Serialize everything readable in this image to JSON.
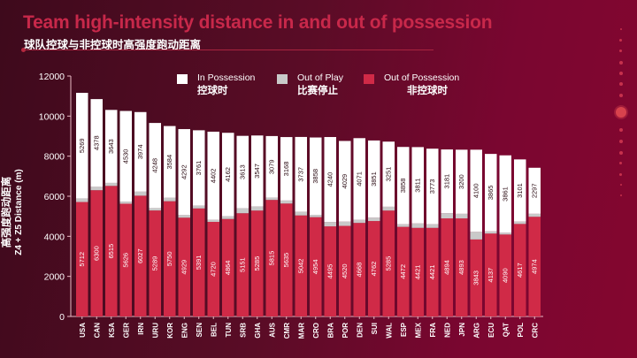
{
  "header": {
    "title": "Team high-intensity distance in and out of possession",
    "subtitle": "球队控球与非控球时高强度跑动距离"
  },
  "legend": [
    {
      "en": "In Possession",
      "zh": "控球时",
      "color": "#ffffff"
    },
    {
      "en": "Out of Play",
      "zh": "比赛停止",
      "color": "#c9c9c9"
    },
    {
      "en": "Out of Possession",
      "zh": "非控球时",
      "color": "#d02a47"
    }
  ],
  "axis": {
    "ylabel_zh": "高强度跑动距离",
    "ylabel_en": "Z4 + Z5 Distance (m)"
  },
  "chart_data": {
    "type": "bar",
    "stacked": true,
    "title": "Team high-intensity distance in and out of possession",
    "subtitle": "球队控球与非控球时高强度跑动距离",
    "xlabel": "",
    "ylabel": "高强度跑动距离 Z4 + Z5 Distance (m)",
    "ylim": [
      0,
      12000
    ],
    "yticks": [
      0,
      2000,
      4000,
      6000,
      8000,
      10000,
      12000
    ],
    "grid": false,
    "legend_position": "top-center",
    "categories": [
      "USA",
      "CAN",
      "KSA",
      "GER",
      "IRN",
      "URU",
      "KOR",
      "ENG",
      "SEN",
      "BEL",
      "TUN",
      "SRB",
      "GHA",
      "AUS",
      "CMR",
      "MAR",
      "CRO",
      "BRA",
      "POR",
      "DEN",
      "SUI",
      "WAL",
      "ESP",
      "MEX",
      "FRA",
      "NED",
      "JPN",
      "ARG",
      "ECU",
      "QAT",
      "POL",
      "CRC"
    ],
    "series": [
      {
        "name": "Out of Possession",
        "name_zh": "非控球时",
        "color": "#d02a47",
        "values": [
          5712,
          6300,
          6515,
          5626,
          6027,
          5289,
          5750,
          4929,
          5391,
          4720,
          4864,
          5151,
          5285,
          5815,
          5635,
          5042,
          4954,
          4495,
          4520,
          4668,
          4762,
          5285,
          4472,
          4421,
          4421,
          4894,
          4893,
          3843,
          4137,
          4090,
          4617,
          4974
        ]
      },
      {
        "name": "Out of Play",
        "name_zh": "比赛停止",
        "color": "#c9c9c9",
        "values": [
          180,
          170,
          150,
          100,
          200,
          120,
          170,
          130,
          140,
          100,
          140,
          250,
          200,
          110,
          150,
          180,
          120,
          220,
          210,
          160,
          170,
          190,
          130,
          220,
          180,
          260,
          230,
          380,
          110,
          90,
          120,
          150
        ]
      },
      {
        "name": "In Possession",
        "name_zh": "控球时",
        "color": "#ffffff",
        "values": [
          5269,
          4378,
          3643,
          4530,
          3974,
          4248,
          3584,
          4292,
          3761,
          4402,
          4162,
          3613,
          3547,
          3079,
          3168,
          3737,
          3858,
          4240,
          4029,
          4071,
          3851,
          3251,
          3858,
          3811,
          3773,
          3181,
          3200,
          4100,
          3865,
          3861,
          3101,
          2297
        ]
      }
    ]
  }
}
